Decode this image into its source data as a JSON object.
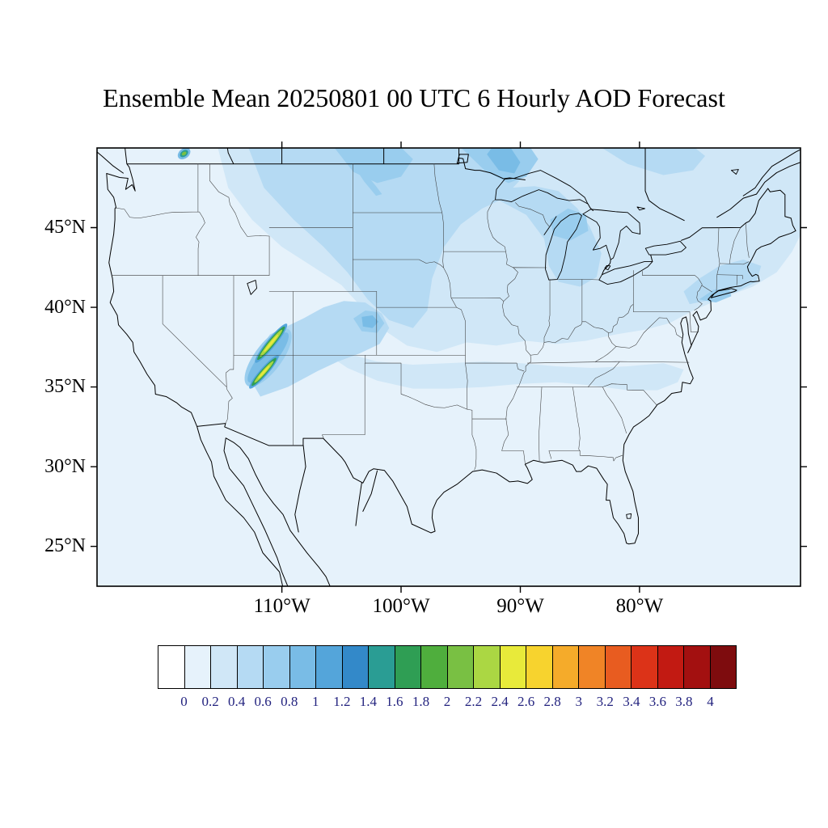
{
  "title": "Ensemble Mean 20250801 00 UTC 6 Hourly AOD Forecast",
  "map": {
    "lat_ticks": [
      "45°N",
      "40°N",
      "35°N",
      "30°N",
      "25°N"
    ],
    "lon_ticks": [
      "110°W",
      "100°W",
      "90°W",
      "80°W"
    ]
  },
  "colorbar": {
    "labels": [
      "0",
      "0.2",
      "0.4",
      "0.6",
      "0.8",
      "1",
      "1.2",
      "1.4",
      "1.6",
      "1.8",
      "2",
      "2.2",
      "2.4",
      "2.6",
      "2.8",
      "3",
      "3.2",
      "3.4",
      "3.6",
      "3.8",
      "4"
    ],
    "colors": [
      "#ffffff",
      "#e6f2fb",
      "#d0e7f7",
      "#b5daf3",
      "#99cdee",
      "#79bce6",
      "#54a5da",
      "#3389c9",
      "#2a9d94",
      "#2f9e54",
      "#4fae3d",
      "#79c043",
      "#abd743",
      "#e8ea3a",
      "#f7d32e",
      "#f5ab2a",
      "#f08426",
      "#e85c20",
      "#dc3318",
      "#c21a12",
      "#a31010",
      "#7e0c0e"
    ]
  },
  "chart_data": {
    "type": "heatmap",
    "title": "Ensemble Mean 20250801 00 UTC 6 Hourly AOD Forecast",
    "variable": "Aerosol Optical Depth (AOD), ensemble mean, 6 hourly forecast",
    "projection": "cylindrical equidistant (lat/lon)",
    "region": "Contiguous United States with southern Canada and northern Mexico",
    "lon_range": [
      -125.5,
      -66.5
    ],
    "lat_range": [
      22.5,
      50.0
    ],
    "lon_tick_values": [
      -110,
      -100,
      -90,
      -80
    ],
    "lat_tick_values": [
      45,
      40,
      35,
      30,
      25
    ],
    "colorbar_levels": [
      0,
      0.2,
      0.4,
      0.6,
      0.8,
      1,
      1.2,
      1.4,
      1.6,
      1.8,
      2,
      2.2,
      2.4,
      2.6,
      2.8,
      3,
      3.2,
      3.4,
      3.6,
      3.8,
      4
    ],
    "legend_position": "bottom",
    "grid": false,
    "features": [
      {
        "region": "southern Utah / Four Corners",
        "description": "two narrow elongated NE-SW smoke plumes with yellow-green cores",
        "approx_center_lat": 36.8,
        "approx_center_lon": -111.0,
        "peak_aod": 2.6
      },
      {
        "region": "NE Colorado / NW Kansas",
        "description": "local maximum",
        "approx_center_lat": 39.1,
        "approx_center_lon": -102.5,
        "peak_aod": 1.0
      },
      {
        "region": "NW Ontario north of Lake Superior",
        "description": "broad elevated AOD area",
        "approx_center_lat": 49.0,
        "approx_center_lon": -91.5,
        "peak_aod": 1.0
      },
      {
        "region": "northern Rockies and northern plains",
        "aod_range": [
          0.4,
          0.8
        ]
      },
      {
        "region": "Great Lakes / upper Midwest",
        "aod_range": [
          0.4,
          0.6
        ]
      },
      {
        "region": "Northeast coast near New York",
        "aod_range": [
          0.4,
          0.8
        ]
      },
      {
        "region": "southern US band near 34-36N",
        "aod_range": [
          0.2,
          0.4
        ]
      },
      {
        "region": "most of CONUS background",
        "aod_range": [
          0.2,
          0.4
        ]
      },
      {
        "region": "far Southwest, Mexico, Gulf of Mexico",
        "aod_range": [
          0.0,
          0.2
        ]
      }
    ]
  }
}
